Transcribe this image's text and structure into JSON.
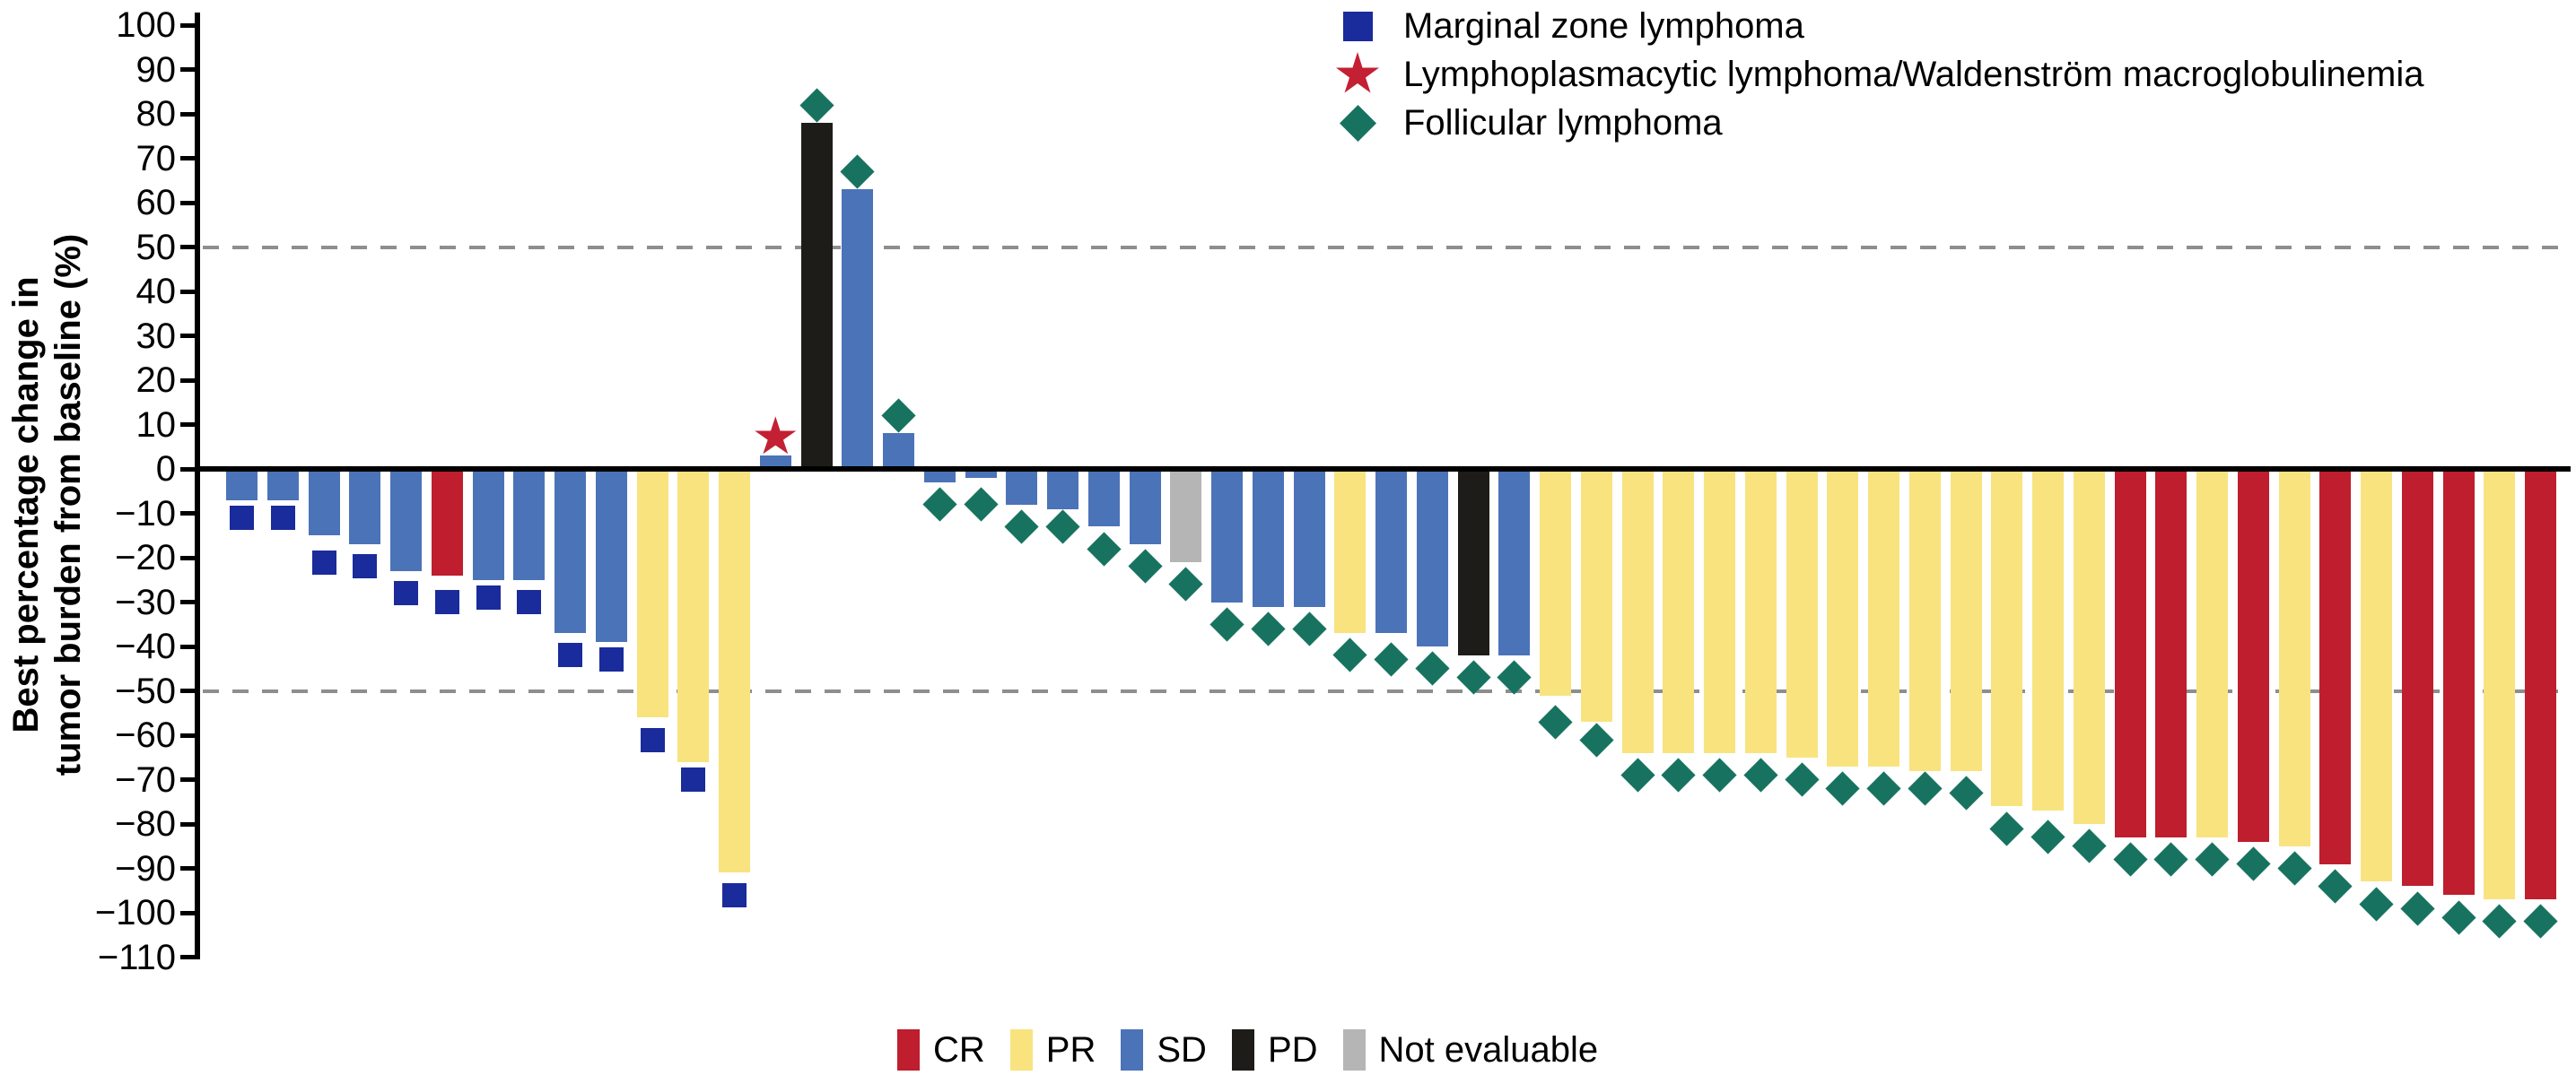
{
  "chart_data": {
    "type": "bar",
    "title": "",
    "ylabel_line1": "Best percentage change in",
    "ylabel_line2": "tumor burden from baseline (%)",
    "ylim": [
      -110,
      100
    ],
    "yticks": [
      100,
      90,
      80,
      70,
      60,
      50,
      40,
      30,
      20,
      10,
      0,
      -10,
      -20,
      -30,
      -40,
      -50,
      -60,
      -70,
      -80,
      -90,
      -100,
      -110
    ],
    "reference_lines": [
      50,
      -50
    ],
    "grid": "off",
    "legend_position_histology": "top-right",
    "legend_position_response": "bottom-center",
    "histology_legend": [
      {
        "key": "MZL",
        "label": "Marginal zone lymphoma",
        "marker": "square",
        "color": "#1a2b9b"
      },
      {
        "key": "LPL",
        "label": "Lymphoplasmacytic lymphoma/Waldenström macroglobulinemia",
        "marker": "star",
        "color": "#c32033"
      },
      {
        "key": "FL",
        "label": "Follicular lymphoma",
        "marker": "diamond",
        "color": "#17735f"
      }
    ],
    "response_legend": [
      {
        "key": "CR",
        "label": "CR",
        "color": "#be1e2d"
      },
      {
        "key": "PR",
        "label": "PR",
        "color": "#f8e37f"
      },
      {
        "key": "SD",
        "label": "SD",
        "color": "#4b73b8"
      },
      {
        "key": "PD",
        "label": "PD",
        "color": "#1d1c18"
      },
      {
        "key": "NE",
        "label": "Not evaluable",
        "color": "#b5b5b5"
      }
    ],
    "response_colors": {
      "CR": "#be1e2d",
      "PR": "#f8e37f",
      "SD": "#4b73b8",
      "PD": "#1d1c18",
      "NE": "#b5b5b5"
    },
    "histology_markers": {
      "MZL": {
        "shape": "square",
        "color": "#1a2b9b"
      },
      "LPL": {
        "shape": "star",
        "color": "#c32033"
      },
      "FL": {
        "shape": "diamond",
        "color": "#17735f"
      }
    },
    "patients": [
      {
        "value": -7,
        "marker_value": -11,
        "response": "SD",
        "histology": "MZL"
      },
      {
        "value": -7,
        "marker_value": -11,
        "response": "SD",
        "histology": "MZL"
      },
      {
        "value": -15,
        "marker_value": -21,
        "response": "SD",
        "histology": "MZL"
      },
      {
        "value": -17,
        "marker_value": -22,
        "response": "SD",
        "histology": "MZL"
      },
      {
        "value": -23,
        "marker_value": -28,
        "response": "SD",
        "histology": "MZL"
      },
      {
        "value": -24,
        "marker_value": -30,
        "response": "CR",
        "histology": "MZL"
      },
      {
        "value": -25,
        "marker_value": -29,
        "response": "SD",
        "histology": "MZL"
      },
      {
        "value": -25,
        "marker_value": -30,
        "response": "SD",
        "histology": "MZL"
      },
      {
        "value": -37,
        "marker_value": -42,
        "response": "SD",
        "histology": "MZL"
      },
      {
        "value": -39,
        "marker_value": -43,
        "response": "SD",
        "histology": "MZL"
      },
      {
        "value": -56,
        "marker_value": -61,
        "response": "PR",
        "histology": "MZL"
      },
      {
        "value": -66,
        "marker_value": -70,
        "response": "PR",
        "histology": "MZL"
      },
      {
        "value": -91,
        "marker_value": -96,
        "response": "PR",
        "histology": "MZL"
      },
      {
        "value": 3,
        "marker_value": 7,
        "response": "SD",
        "histology": "LPL"
      },
      {
        "value": 78,
        "marker_value": 82,
        "response": "PD",
        "histology": "FL"
      },
      {
        "value": 63,
        "marker_value": 67,
        "response": "SD",
        "histology": "FL"
      },
      {
        "value": 8,
        "marker_value": 12,
        "response": "SD",
        "histology": "FL"
      },
      {
        "value": -3,
        "marker_value": -8,
        "response": "SD",
        "histology": "FL"
      },
      {
        "value": -2,
        "marker_value": -8,
        "response": "SD",
        "histology": "FL"
      },
      {
        "value": -8,
        "marker_value": -13,
        "response": "SD",
        "histology": "FL"
      },
      {
        "value": -9,
        "marker_value": -13,
        "response": "SD",
        "histology": "FL"
      },
      {
        "value": -13,
        "marker_value": -18,
        "response": "SD",
        "histology": "FL"
      },
      {
        "value": -17,
        "marker_value": -22,
        "response": "SD",
        "histology": "FL"
      },
      {
        "value": -21,
        "marker_value": -26,
        "response": "NE",
        "histology": "FL"
      },
      {
        "value": -30,
        "marker_value": -35,
        "response": "SD",
        "histology": "FL"
      },
      {
        "value": -31,
        "marker_value": -36,
        "response": "SD",
        "histology": "FL"
      },
      {
        "value": -31,
        "marker_value": -36,
        "response": "SD",
        "histology": "FL"
      },
      {
        "value": -37,
        "marker_value": -42,
        "response": "PR",
        "histology": "FL"
      },
      {
        "value": -37,
        "marker_value": -43,
        "response": "SD",
        "histology": "FL"
      },
      {
        "value": -40,
        "marker_value": -45,
        "response": "SD",
        "histology": "FL"
      },
      {
        "value": -42,
        "marker_value": -47,
        "response": "PD",
        "histology": "FL"
      },
      {
        "value": -42,
        "marker_value": -47,
        "response": "SD",
        "histology": "FL"
      },
      {
        "value": -51,
        "marker_value": -57,
        "response": "PR",
        "histology": "FL"
      },
      {
        "value": -57,
        "marker_value": -61,
        "response": "PR",
        "histology": "FL"
      },
      {
        "value": -64,
        "marker_value": -69,
        "response": "PR",
        "histology": "FL"
      },
      {
        "value": -64,
        "marker_value": -69,
        "response": "PR",
        "histology": "FL"
      },
      {
        "value": -64,
        "marker_value": -69,
        "response": "PR",
        "histology": "FL"
      },
      {
        "value": -64,
        "marker_value": -69,
        "response": "PR",
        "histology": "FL"
      },
      {
        "value": -65,
        "marker_value": -70,
        "response": "PR",
        "histology": "FL"
      },
      {
        "value": -67,
        "marker_value": -72,
        "response": "PR",
        "histology": "FL"
      },
      {
        "value": -67,
        "marker_value": -72,
        "response": "PR",
        "histology": "FL"
      },
      {
        "value": -68,
        "marker_value": -72,
        "response": "PR",
        "histology": "FL"
      },
      {
        "value": -68,
        "marker_value": -73,
        "response": "PR",
        "histology": "FL"
      },
      {
        "value": -76,
        "marker_value": -81,
        "response": "PR",
        "histology": "FL"
      },
      {
        "value": -77,
        "marker_value": -83,
        "response": "PR",
        "histology": "FL"
      },
      {
        "value": -80,
        "marker_value": -85,
        "response": "PR",
        "histology": "FL"
      },
      {
        "value": -83,
        "marker_value": -88,
        "response": "CR",
        "histology": "FL"
      },
      {
        "value": -83,
        "marker_value": -88,
        "response": "CR",
        "histology": "FL"
      },
      {
        "value": -83,
        "marker_value": -88,
        "response": "PR",
        "histology": "FL"
      },
      {
        "value": -84,
        "marker_value": -89,
        "response": "CR",
        "histology": "FL"
      },
      {
        "value": -85,
        "marker_value": -90,
        "response": "PR",
        "histology": "FL"
      },
      {
        "value": -89,
        "marker_value": -94,
        "response": "CR",
        "histology": "FL"
      },
      {
        "value": -93,
        "marker_value": -98,
        "response": "PR",
        "histology": "FL"
      },
      {
        "value": -94,
        "marker_value": -99,
        "response": "CR",
        "histology": "FL"
      },
      {
        "value": -96,
        "marker_value": -101,
        "response": "CR",
        "histology": "FL"
      },
      {
        "value": -97,
        "marker_value": -102,
        "response": "PR",
        "histology": "FL"
      },
      {
        "value": -97,
        "marker_value": -102,
        "response": "CR",
        "histology": "FL"
      }
    ]
  }
}
